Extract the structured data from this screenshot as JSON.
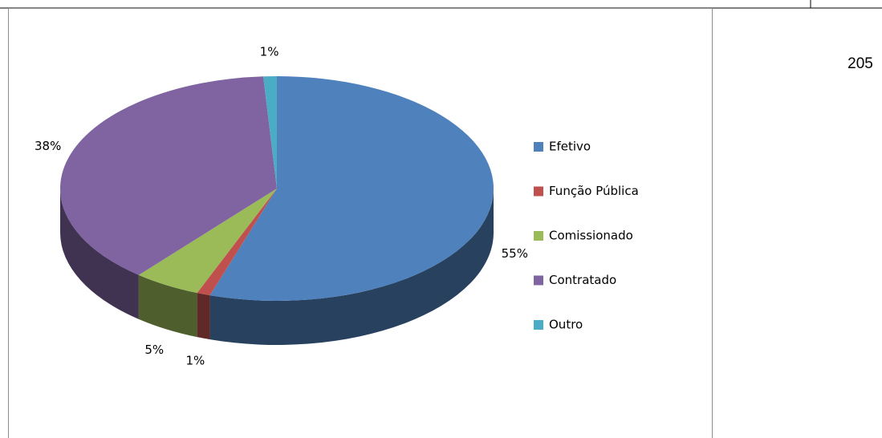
{
  "page_number": "205",
  "chart_data": {
    "type": "pie",
    "categories": [
      "Efetivo",
      "Função Pública",
      "Comissionado",
      "Contratado",
      "Outro"
    ],
    "values": [
      55,
      1,
      5,
      38,
      1
    ],
    "value_labels": [
      "55%",
      "1%",
      "5%",
      "38%",
      "1%"
    ],
    "colors": [
      "#4f81bd",
      "#c0504d",
      "#9bbb59",
      "#8064a2",
      "#4bacc6"
    ],
    "legend": "right"
  }
}
